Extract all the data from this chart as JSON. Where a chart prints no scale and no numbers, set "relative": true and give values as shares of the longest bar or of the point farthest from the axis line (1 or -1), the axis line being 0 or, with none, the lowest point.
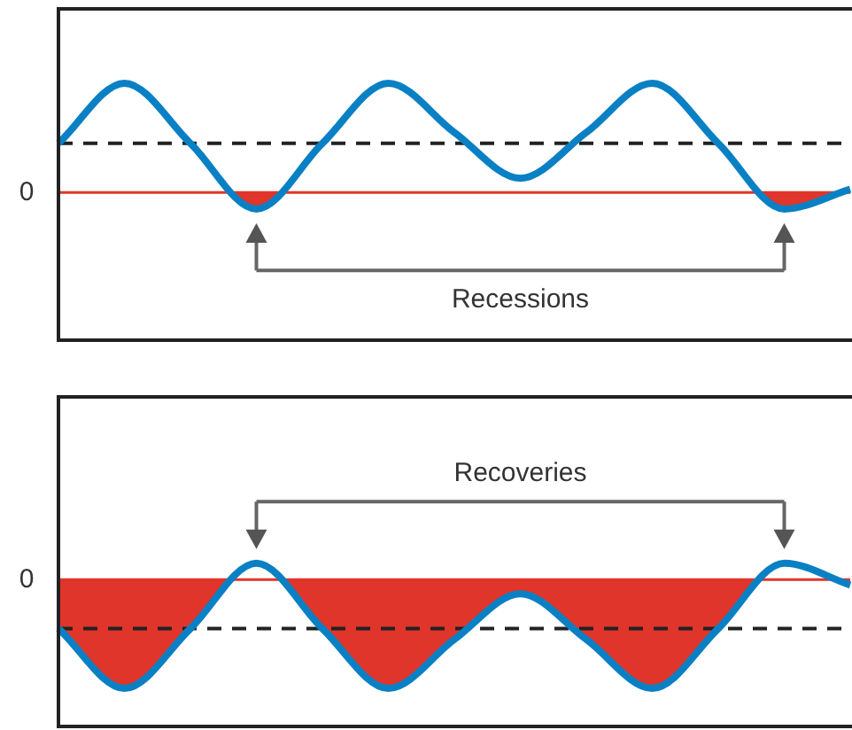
{
  "chart_data": [
    {
      "type": "line",
      "relative": true,
      "categories": [
        null,
        null,
        null,
        null,
        null,
        null,
        null,
        null,
        null,
        null,
        null,
        null,
        null
      ],
      "series": [
        {
          "color": "#0a80c4",
          "values": [
            0.45,
            1,
            0.45,
            -0.15,
            0.45,
            1,
            0.55,
            0.13,
            0.55,
            1,
            0.45,
            -0.15,
            0.03
          ]
        }
      ],
      "ref_lines": [
        {
          "axis": "y",
          "value": 0,
          "label": "0",
          "color": "#e0352b"
        },
        {
          "axis": "y",
          "value": 0.45,
          "color": "#222222",
          "line_style": "dashed"
        }
      ],
      "annotations": [
        "Recessions"
      ],
      "marker": "none",
      "legend": false
    },
    {
      "type": "line",
      "relative": true,
      "categories": [
        null,
        null,
        null,
        null,
        null,
        null,
        null,
        null,
        null,
        null,
        null,
        null,
        null
      ],
      "series": [
        {
          "color": "#0a80c4",
          "values": [
            -0.45,
            -1,
            -0.45,
            0.15,
            -0.45,
            -1,
            -0.55,
            -0.13,
            -0.55,
            -1,
            -0.45,
            0.15,
            -0.05
          ]
        }
      ],
      "ref_lines": [
        {
          "axis": "y",
          "value": 0,
          "label": "0",
          "color": "#e0352b"
        },
        {
          "axis": "y",
          "value": -0.45,
          "color": "#222222",
          "line_style": "dashed"
        }
      ],
      "annotations": [
        "Recoveries"
      ],
      "marker": "none",
      "legend": false
    }
  ]
}
